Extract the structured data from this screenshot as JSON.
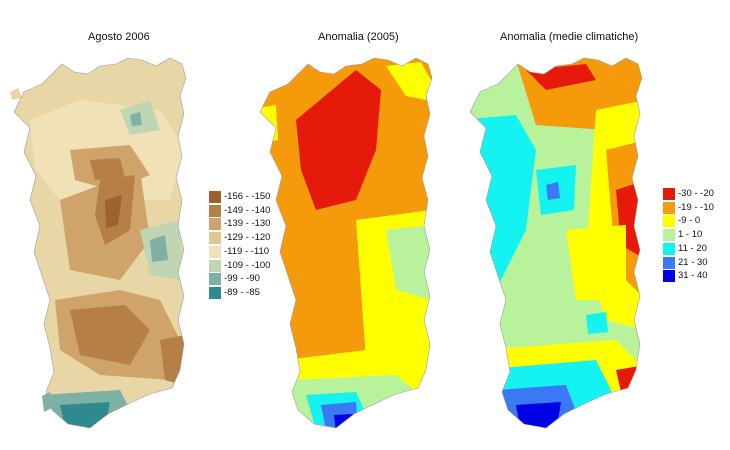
{
  "panels": [
    {
      "title": "Agosto 2006",
      "legend": [
        {
          "label": "-156 - -150",
          "color": "#9c6330"
        },
        {
          "label": "-149 - -140",
          "color": "#b57f47"
        },
        {
          "label": "-139 - -130",
          "color": "#cfa36a"
        },
        {
          "label": "-129 - -120",
          "color": "#e2c48e"
        },
        {
          "label": "-119 - -110",
          "color": "#f0e2b6"
        },
        {
          "label": "-109 - -100",
          "color": "#bfd5b3"
        },
        {
          "label": "-99 - -90",
          "color": "#7fb0a4"
        },
        {
          "label": "-89 - -85",
          "color": "#2f8a8f"
        }
      ]
    },
    {
      "title": "Anomalia (2005)",
      "legend": []
    },
    {
      "title": "Anomalia (medie climatiche)",
      "legend": [
        {
          "label": "-30 - -20",
          "color": "#e61a0a"
        },
        {
          "label": "-19 - -10",
          "color": "#f59a0a"
        },
        {
          "label": "-9 - 0",
          "color": "#ffff00"
        },
        {
          "label": "1 - 10",
          "color": "#b8f29a"
        },
        {
          "label": "11 - 20",
          "color": "#14f2f2"
        },
        {
          "label": "21 - 30",
          "color": "#3a78f5"
        },
        {
          "label": "31 - 40",
          "color": "#0000e6"
        }
      ]
    }
  ]
}
